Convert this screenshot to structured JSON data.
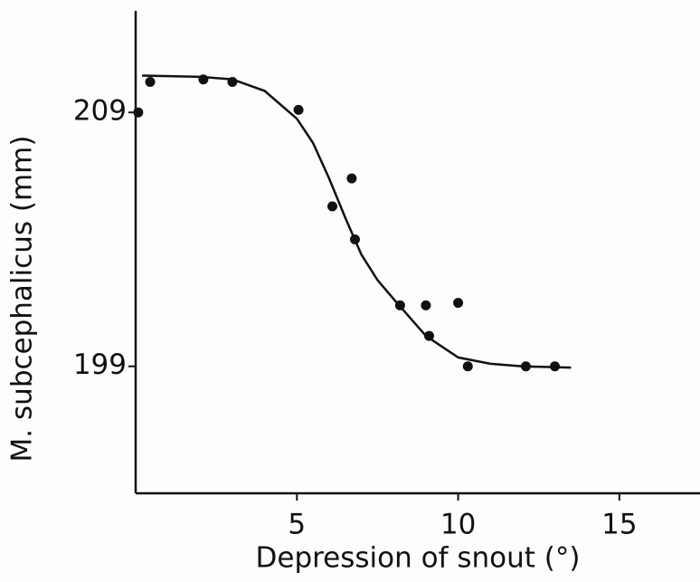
{
  "chart_data": {
    "type": "scatter",
    "x_label": "Depression of snout (°)",
    "y_label": "M. subcephalicus (mm)",
    "xlim": [
      0,
      17.5
    ],
    "ylim": [
      194,
      213
    ],
    "xticks": [
      5,
      10,
      15
    ],
    "yticks": [
      199,
      209
    ],
    "color": "#111111",
    "points": {
      "x": [
        0.08,
        0.45,
        2.1,
        3.0,
        5.05,
        6.1,
        6.7,
        6.8,
        8.2,
        9.0,
        10.0,
        9.1,
        10.3,
        12.1,
        13.0
      ],
      "values": [
        209.0,
        210.2,
        210.3,
        210.2,
        209.1,
        205.3,
        206.4,
        204.0,
        201.4,
        201.4,
        201.5,
        200.2,
        199.0,
        199.0,
        199.0
      ]
    },
    "curve": {
      "x": [
        0.2,
        2,
        3,
        4,
        5,
        5.5,
        6,
        6.5,
        7,
        7.5,
        8,
        9,
        10,
        11,
        12,
        13.5
      ],
      "values": [
        210.45,
        210.4,
        210.3,
        209.85,
        208.75,
        207.8,
        206.4,
        204.85,
        203.4,
        202.4,
        201.65,
        200.2,
        199.35,
        199.1,
        199.0,
        198.95
      ]
    }
  }
}
